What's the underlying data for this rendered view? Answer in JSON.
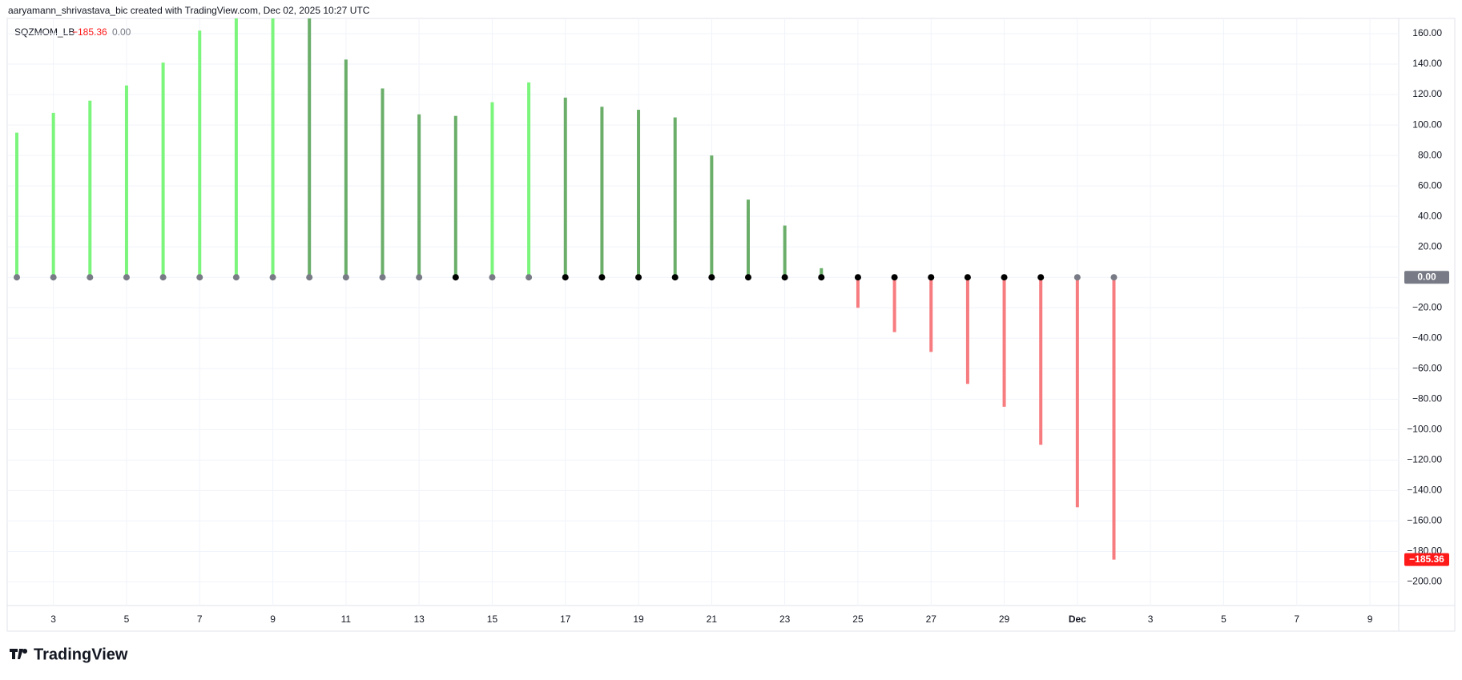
{
  "header": "aaryamann_shrivastava_bic created with TradingView.com, Dec 02, 2025 10:27 UTC",
  "footer": "TradingView",
  "chart_data": {
    "type": "bar",
    "indicator": "SQZMOM_LB",
    "legend_values": [
      {
        "value": -185.36,
        "label": "−185.36",
        "color": "#ff1a1a"
      },
      {
        "value": 0,
        "label": "0.00",
        "color": "#787b86"
      }
    ],
    "categories": [
      null,
      "3",
      null,
      "5",
      null,
      "7",
      null,
      "9",
      null,
      "11",
      null,
      "13",
      null,
      "15",
      null,
      "17",
      null,
      "19",
      null,
      "21",
      null,
      "23",
      null,
      "25",
      null,
      "27",
      null,
      "29",
      null,
      "Dec",
      null,
      "3",
      null,
      "5",
      null,
      "7",
      null,
      "9"
    ],
    "values": [
      95,
      108,
      116,
      126,
      141,
      162,
      175,
      182,
      178,
      143,
      124,
      107,
      106,
      115,
      128,
      118,
      112,
      110,
      105,
      80,
      51,
      34,
      6,
      -20,
      -36,
      -49,
      -70,
      -85,
      -110,
      -151,
      -185.36,
      null,
      null,
      null,
      null,
      null,
      null,
      null
    ],
    "colors": [
      "#7cf57c",
      "#7cf57c",
      "#7cf57c",
      "#7cf57c",
      "#7cf57c",
      "#7cf57c",
      "#7cf57c",
      "#7cf57c",
      "#6aae6a",
      "#6aae6a",
      "#6aae6a",
      "#6aae6a",
      "#6aae6a",
      "#7cf57c",
      "#7cf57c",
      "#6aae6a",
      "#6aae6a",
      "#6aae6a",
      "#6aae6a",
      "#6aae6a",
      "#6aae6a",
      "#6aae6a",
      "#6aae6a",
      "#f77c80",
      "#f77c80",
      "#f77c80",
      "#f77c80",
      "#f77c80",
      "#f77c80",
      "#f77c80",
      "#f77c80",
      null,
      null,
      null,
      null,
      null,
      null,
      null
    ],
    "squeeze_values": [
      0,
      0,
      0,
      0,
      0,
      0,
      0,
      0,
      0,
      0,
      0,
      0,
      0,
      0,
      0,
      0,
      0,
      0,
      0,
      0,
      0,
      0,
      0,
      0,
      0,
      0,
      0,
      0,
      0,
      0,
      0,
      null,
      null,
      null,
      null,
      null,
      null,
      null
    ],
    "squeeze_colors": [
      "#787b86",
      "#787b86",
      "#787b86",
      "#787b86",
      "#787b86",
      "#787b86",
      "#787b86",
      "#787b86",
      "#787b86",
      "#787b86",
      "#787b86",
      "#787b86",
      "#000000",
      "#787b86",
      "#787b86",
      "#000000",
      "#000000",
      "#000000",
      "#000000",
      "#000000",
      "#000000",
      "#000000",
      "#000000",
      "#000000",
      "#000000",
      "#000000",
      "#000000",
      "#000000",
      "#000000",
      "#787b86",
      "#787b86",
      null,
      null,
      null,
      null,
      null,
      null,
      null
    ],
    "ylim": [
      -215,
      170
    ],
    "yticks": [
      {
        "value": 160,
        "label": "160.00"
      },
      {
        "value": 140,
        "label": "140.00"
      },
      {
        "value": 120,
        "label": "120.00"
      },
      {
        "value": 100,
        "label": "100.00"
      },
      {
        "value": 80,
        "label": "80.00"
      },
      {
        "value": 60,
        "label": "60.00"
      },
      {
        "value": 40,
        "label": "40.00"
      },
      {
        "value": 20,
        "label": "20.00"
      },
      {
        "value": 0,
        "label": "0.00"
      },
      {
        "value": -20,
        "label": "−20.00"
      },
      {
        "value": -40,
        "label": "−40.00"
      },
      {
        "value": -60,
        "label": "−60.00"
      },
      {
        "value": -80,
        "label": "−80.00"
      },
      {
        "value": -100,
        "label": "−100.00"
      },
      {
        "value": -120,
        "label": "−120.00"
      },
      {
        "value": -140,
        "label": "−140.00"
      },
      {
        "value": -160,
        "label": "−160.00"
      },
      {
        "value": -180,
        "label": "−180.00"
      },
      {
        "value": -200,
        "label": "−200.00"
      }
    ],
    "grid": true
  }
}
